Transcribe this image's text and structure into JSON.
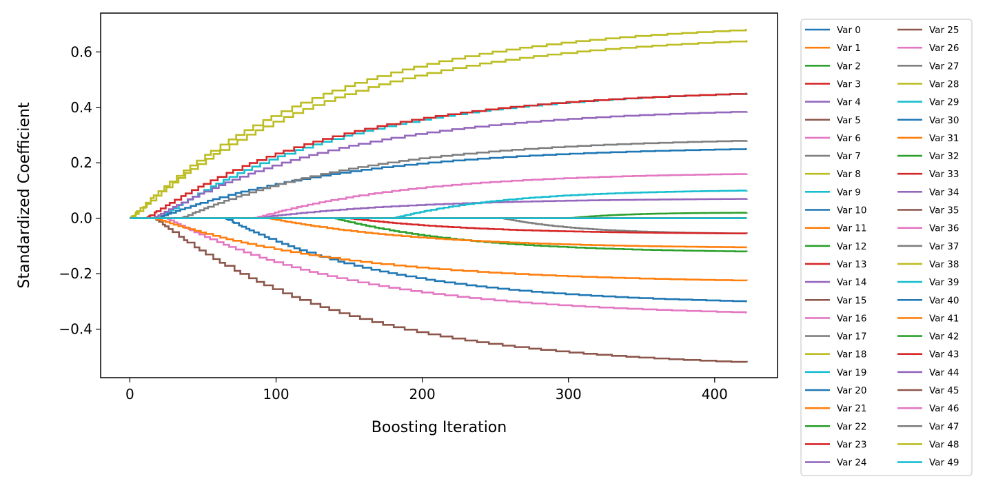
{
  "chart_data": {
    "type": "line",
    "title": "",
    "xlabel": "Boosting Iteration",
    "ylabel": "Standardized Coefficient",
    "xlim": [
      -20,
      443
    ],
    "ylim": [
      -0.575,
      0.74
    ],
    "xticks": [
      0,
      100,
      200,
      300,
      400
    ],
    "xtick_labels": [
      "0",
      "100",
      "200",
      "300",
      "400"
    ],
    "yticks": [
      -0.4,
      -0.2,
      0.0,
      0.2,
      0.4,
      0.6
    ],
    "ytick_labels": [
      "−0.4",
      "−0.2",
      "0.0",
      "0.2",
      "0.4",
      "0.6"
    ],
    "grid": false,
    "legend_placement": "outside-right",
    "legend_columns": 2,
    "step": true,
    "colors": [
      "#1f77b4",
      "#ff7f0e",
      "#2ca02c",
      "#d62728",
      "#9467bd",
      "#8c564b",
      "#e377c2",
      "#7f7f7f",
      "#bcbd22",
      "#17becf"
    ],
    "series": [
      {
        "name": "Var 0",
        "start": 0,
        "final": 0.0
      },
      {
        "name": "Var 1",
        "start": 0,
        "final": 0.0
      },
      {
        "name": "Var 2",
        "start": 0,
        "final": 0.0
      },
      {
        "name": "Var 3",
        "start": 0,
        "final": 0.0
      },
      {
        "name": "Var 4",
        "start": 0,
        "final": 0.0
      },
      {
        "name": "Var 5",
        "start": 0,
        "final": 0.0
      },
      {
        "name": "Var 6",
        "start": 0,
        "final": 0.0
      },
      {
        "name": "Var 7",
        "start": 0,
        "final": 0.0
      },
      {
        "name": "Var 8",
        "start": 1,
        "final": 0.64
      },
      {
        "name": "Var 9",
        "start": 20,
        "final": 0.45
      },
      {
        "name": "Var 10",
        "start": 65,
        "final": -0.3
      },
      {
        "name": "Var 11",
        "start": 0,
        "final": 0.0
      },
      {
        "name": "Var 12",
        "start": 140,
        "final": -0.12
      },
      {
        "name": "Var 13",
        "start": 0,
        "final": 0.0
      },
      {
        "name": "Var 14",
        "start": 85,
        "final": 0.07
      },
      {
        "name": "Var 15",
        "start": 0,
        "final": 0.0
      },
      {
        "name": "Var 16",
        "start": 0,
        "final": 0.0
      },
      {
        "name": "Var 17",
        "start": 0,
        "final": 0.0
      },
      {
        "name": "Var 18",
        "start": 0,
        "final": 0.0
      },
      {
        "name": "Var 19",
        "start": 180,
        "final": 0.1
      },
      {
        "name": "Var 20",
        "start": 18,
        "final": 0.25
      },
      {
        "name": "Var 21",
        "start": 0,
        "final": 0.0
      },
      {
        "name": "Var 22",
        "start": 0,
        "final": 0.0
      },
      {
        "name": "Var 23",
        "start": 0,
        "final": 0.0
      },
      {
        "name": "Var 24",
        "start": 0,
        "final": 0.0
      },
      {
        "name": "Var 25",
        "start": 17,
        "final": -0.52
      },
      {
        "name": "Var 26",
        "start": 25,
        "final": -0.34
      },
      {
        "name": "Var 27",
        "start": 255,
        "final": -0.055
      },
      {
        "name": "Var 28",
        "start": 0,
        "final": 0.0
      },
      {
        "name": "Var 29",
        "start": 0,
        "final": 0.0
      },
      {
        "name": "Var 30",
        "start": 0,
        "final": 0.0
      },
      {
        "name": "Var 31",
        "start": 17,
        "final": -0.225
      },
      {
        "name": "Var 32",
        "start": 0,
        "final": 0.0
      },
      {
        "name": "Var 33",
        "start": 11,
        "final": 0.45
      },
      {
        "name": "Var 34",
        "start": 16,
        "final": 0.385
      },
      {
        "name": "Var 35",
        "start": 0,
        "final": 0.0
      },
      {
        "name": "Var 36",
        "start": 85,
        "final": 0.16
      },
      {
        "name": "Var 37",
        "start": 35,
        "final": 0.28
      },
      {
        "name": "Var 38",
        "start": 0,
        "final": 0.68
      },
      {
        "name": "Var 39",
        "start": 0,
        "final": 0.0
      },
      {
        "name": "Var 40",
        "start": 0,
        "final": 0.0
      },
      {
        "name": "Var 41",
        "start": 95,
        "final": -0.105
      },
      {
        "name": "Var 42",
        "start": 300,
        "final": 0.02
      },
      {
        "name": "Var 43",
        "start": 150,
        "final": -0.055
      },
      {
        "name": "Var 44",
        "start": 0,
        "final": 0.0
      },
      {
        "name": "Var 45",
        "start": 0,
        "final": 0.0
      },
      {
        "name": "Var 46",
        "start": 0,
        "final": 0.0
      },
      {
        "name": "Var 47",
        "start": 0,
        "final": 0.0
      },
      {
        "name": "Var 48",
        "start": 0,
        "final": 0.0
      },
      {
        "name": "Var 49",
        "start": 0,
        "final": 0.0
      }
    ],
    "n_iterations": 422
  }
}
